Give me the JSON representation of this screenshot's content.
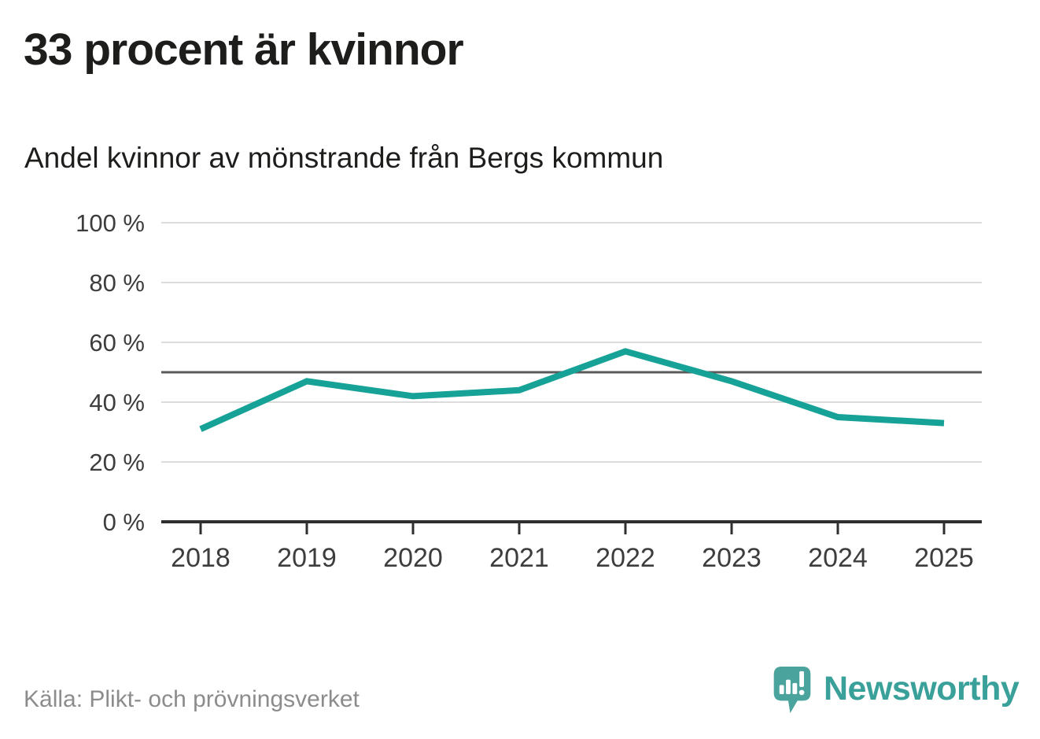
{
  "header": {
    "title": "33 procent är kvinnor",
    "subtitle": "Andel kvinnor av mönstrande från Bergs kommun"
  },
  "chart_data": {
    "type": "line",
    "title": "Andel kvinnor av mönstrande från Bergs kommun",
    "x": [
      "2018",
      "2019",
      "2020",
      "2021",
      "2022",
      "2023",
      "2024",
      "2025"
    ],
    "series": [
      {
        "name": "Andel kvinnor av mönstrande",
        "values": [
          31,
          47,
          42,
          44,
          57,
          47,
          35,
          33
        ]
      }
    ],
    "unit": "%",
    "ylim": [
      0,
      100
    ],
    "yticks": [
      0,
      20,
      40,
      60,
      80,
      100
    ],
    "ytick_labels": [
      "0 %",
      "20 %",
      "40 %",
      "60 %",
      "80 %",
      "100 %"
    ],
    "reference_line": {
      "value": 50
    },
    "grid": true,
    "legend": "none"
  },
  "colors": {
    "line": "#16a296",
    "grid": "#dcdcdc",
    "reference": "#5a5a5a",
    "axis": "#2f2f2f",
    "tick_text": "#3d3d3d",
    "title_text": "#1d1d1b",
    "source_text": "#8c8c8c",
    "logo_text": "#3aa09a",
    "logo_mark": "#4aa39c",
    "logo_glyph": "#ffffff"
  },
  "footer": {
    "source": "Källa: Plikt- och prövningsverket",
    "brand": "Newsworthy"
  }
}
